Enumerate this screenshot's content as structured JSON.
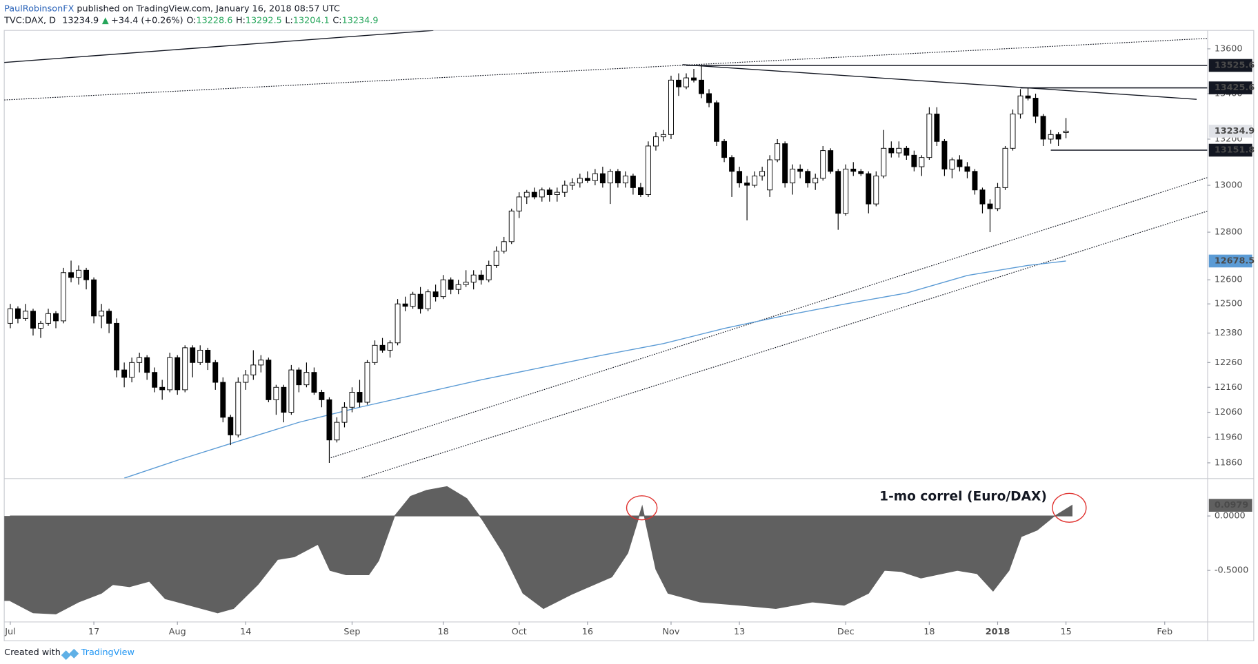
{
  "header": {
    "author": "PaulRobinsonFX",
    "published": " published on TradingView.com, January 16, 2018 08:57 UTC",
    "symbol": "TVC:DAX, D",
    "last": "13234.9",
    "arrow": "▲",
    "change": "+34.4 (+0.26%)",
    "ohlc": [
      {
        "key": "O:",
        "value": "13228.6"
      },
      {
        "key": "H:",
        "value": "13292.5"
      },
      {
        "key": "L:",
        "value": "13204.1"
      },
      {
        "key": "C:",
        "value": "13234.9"
      }
    ]
  },
  "footer": {
    "created": "Created with",
    "brand": "TradingView"
  },
  "chart_data": [
    {
      "type": "candlestick",
      "log": true,
      "ylim": [
        11800,
        13683
      ],
      "xlim": [
        -0.8,
        157.6
      ],
      "yticks": [
        11860,
        11960,
        12060,
        12160,
        12260,
        12380,
        12500,
        12600,
        12800,
        13000,
        13200,
        13400,
        13600
      ],
      "xticks": [
        {
          "value": 0,
          "label": "Jul"
        },
        {
          "value": 11,
          "label": "17"
        },
        {
          "value": 22,
          "label": "Aug"
        },
        {
          "value": 31,
          "label": "14"
        },
        {
          "value": 45,
          "label": "Sep"
        },
        {
          "value": 57,
          "label": "18"
        },
        {
          "value": 67,
          "label": "Oct"
        },
        {
          "value": 76,
          "label": "16"
        },
        {
          "value": 87,
          "label": "Nov"
        },
        {
          "value": 96,
          "label": "13"
        },
        {
          "value": 110,
          "label": "Dec"
        },
        {
          "value": 121,
          "label": "18"
        },
        {
          "value": 130,
          "label": "2018"
        },
        {
          "value": 139,
          "label": "15"
        },
        {
          "value": 152,
          "label": "Feb"
        }
      ],
      "up_color": "#ffffff",
      "down_color": "#000000",
      "candles": [
        [
          12420,
          12500,
          12400,
          12480
        ],
        [
          12480,
          12490,
          12420,
          12440
        ],
        [
          12440,
          12500,
          12430,
          12470
        ],
        [
          12470,
          12480,
          12370,
          12400
        ],
        [
          12400,
          12430,
          12360,
          12420
        ],
        [
          12420,
          12480,
          12410,
          12460
        ],
        [
          12460,
          12470,
          12400,
          12430
        ],
        [
          12430,
          12650,
          12420,
          12630
        ],
        [
          12630,
          12680,
          12590,
          12610
        ],
        [
          12610,
          12660,
          12580,
          12640
        ],
        [
          12640,
          12650,
          12560,
          12600
        ],
        [
          12600,
          12610,
          12420,
          12450
        ],
        [
          12450,
          12500,
          12400,
          12470
        ],
        [
          12470,
          12480,
          12380,
          12420
        ],
        [
          12420,
          12440,
          12200,
          12230
        ],
        [
          12230,
          12260,
          12160,
          12200
        ],
        [
          12200,
          12280,
          12180,
          12260
        ],
        [
          12260,
          12300,
          12220,
          12280
        ],
        [
          12280,
          12290,
          12190,
          12220
        ],
        [
          12220,
          12240,
          12140,
          12160
        ],
        [
          12160,
          12190,
          12110,
          12150
        ],
        [
          12150,
          12300,
          12140,
          12280
        ],
        [
          12280,
          12290,
          12130,
          12150
        ],
        [
          12150,
          12330,
          12140,
          12320
        ],
        [
          12320,
          12330,
          12200,
          12260
        ],
        [
          12260,
          12330,
          12250,
          12310
        ],
        [
          12310,
          12320,
          12230,
          12260
        ],
        [
          12260,
          12270,
          12150,
          12180
        ],
        [
          12180,
          12200,
          12020,
          12040
        ],
        [
          12040,
          12050,
          11930,
          11970
        ],
        [
          11970,
          12200,
          11960,
          12180
        ],
        [
          12180,
          12230,
          12150,
          12210
        ],
        [
          12210,
          12310,
          12190,
          12250
        ],
        [
          12250,
          12290,
          12220,
          12270
        ],
        [
          12270,
          12280,
          12100,
          12110
        ],
        [
          12110,
          12170,
          12050,
          12160
        ],
        [
          12160,
          12170,
          12020,
          12060
        ],
        [
          12060,
          12250,
          12050,
          12230
        ],
        [
          12230,
          12240,
          12140,
          12170
        ],
        [
          12170,
          12260,
          12160,
          12220
        ],
        [
          12220,
          12240,
          12130,
          12140
        ],
        [
          12140,
          12150,
          12080,
          12110
        ],
        [
          12110,
          12120,
          11860,
          11950
        ],
        [
          11950,
          12040,
          11940,
          12020
        ],
        [
          12020,
          12100,
          12000,
          12080
        ],
        [
          12080,
          12160,
          12060,
          12140
        ],
        [
          12140,
          12190,
          12080,
          12100
        ],
        [
          12100,
          12270,
          12090,
          12260
        ],
        [
          12260,
          12350,
          12250,
          12330
        ],
        [
          12330,
          12360,
          12300,
          12310
        ],
        [
          12310,
          12350,
          12280,
          12340
        ],
        [
          12340,
          12520,
          12330,
          12500
        ],
        [
          12500,
          12530,
          12470,
          12490
        ],
        [
          12490,
          12550,
          12480,
          12540
        ],
        [
          12540,
          12570,
          12460,
          12480
        ],
        [
          12480,
          12560,
          12470,
          12550
        ],
        [
          12550,
          12580,
          12510,
          12530
        ],
        [
          12530,
          12620,
          12520,
          12600
        ],
        [
          12600,
          12610,
          12540,
          12560
        ],
        [
          12560,
          12600,
          12540,
          12580
        ],
        [
          12580,
          12640,
          12570,
          12590
        ],
        [
          12590,
          12640,
          12560,
          12620
        ],
        [
          12620,
          12640,
          12580,
          12600
        ],
        [
          12600,
          12680,
          12590,
          12660
        ],
        [
          12660,
          12740,
          12650,
          12720
        ],
        [
          12720,
          12780,
          12710,
          12760
        ],
        [
          12760,
          12900,
          12750,
          12890
        ],
        [
          12890,
          12970,
          12860,
          12950
        ],
        [
          12950,
          12980,
          12920,
          12970
        ],
        [
          12970,
          12990,
          12940,
          12950
        ],
        [
          12950,
          12990,
          12930,
          12980
        ],
        [
          12980,
          12990,
          12930,
          12960
        ],
        [
          12960,
          12990,
          12930,
          12970
        ],
        [
          12970,
          13020,
          12950,
          13000
        ],
        [
          13000,
          13030,
          12980,
          13010
        ],
        [
          13010,
          13050,
          12990,
          13030
        ],
        [
          13030,
          13060,
          13010,
          13020
        ],
        [
          13020,
          13070,
          13000,
          13050
        ],
        [
          13050,
          13080,
          12990,
          13010
        ],
        [
          13010,
          13070,
          12920,
          13060
        ],
        [
          13060,
          13070,
          12990,
          13010
        ],
        [
          13010,
          13060,
          12990,
          13040
        ],
        [
          13040,
          13050,
          12960,
          12990
        ],
        [
          12990,
          13010,
          12950,
          12960
        ],
        [
          12960,
          13190,
          12950,
          13170
        ],
        [
          13170,
          13230,
          13150,
          13210
        ],
        [
          13210,
          13240,
          13190,
          13220
        ],
        [
          13220,
          13480,
          13200,
          13460
        ],
        [
          13460,
          13490,
          13390,
          13430
        ],
        [
          13430,
          13490,
          13420,
          13470
        ],
        [
          13470,
          13510,
          13450,
          13460
        ],
        [
          13460,
          13525.6,
          13380,
          13400
        ],
        [
          13400,
          13420,
          13340,
          13360
        ],
        [
          13360,
          13370,
          13170,
          13190
        ],
        [
          13190,
          13200,
          13100,
          13120
        ],
        [
          13120,
          13130,
          12950,
          13060
        ],
        [
          13060,
          13080,
          12990,
          13010
        ],
        [
          13010,
          13040,
          12850,
          13000
        ],
        [
          13000,
          13060,
          12990,
          13040
        ],
        [
          13040,
          13080,
          13020,
          13060
        ],
        [
          12980,
          13130,
          12950,
          13110
        ],
        [
          13110,
          13200,
          13100,
          13180
        ],
        [
          13180,
          13190,
          12990,
          13010
        ],
        [
          13010,
          13090,
          12960,
          13070
        ],
        [
          13070,
          13090,
          13030,
          13060
        ],
        [
          13060,
          13070,
          12990,
          13010
        ],
        [
          13010,
          13050,
          12980,
          13030
        ],
        [
          13030,
          13170,
          13020,
          13150
        ],
        [
          13150,
          13160,
          13050,
          13060
        ],
        [
          13060,
          13070,
          12810,
          12880
        ],
        [
          12880,
          13090,
          12870,
          13070
        ],
        [
          13070,
          13100,
          13040,
          13060
        ],
        [
          13060,
          13070,
          13040,
          13050
        ],
        [
          13050,
          13060,
          12880,
          12920
        ],
        [
          12920,
          13060,
          12910,
          13040
        ],
        [
          13040,
          13240,
          13030,
          13160
        ],
        [
          13160,
          13190,
          13120,
          13140
        ],
        [
          13140,
          13190,
          13120,
          13160
        ],
        [
          13160,
          13170,
          13110,
          13130
        ],
        [
          13130,
          13150,
          13060,
          13080
        ],
        [
          13080,
          13130,
          13040,
          13120
        ],
        [
          13120,
          13340,
          13110,
          13310
        ],
        [
          13310,
          13340,
          13170,
          13190
        ],
        [
          13190,
          13200,
          13040,
          13070
        ],
        [
          13070,
          13120,
          13030,
          13110
        ],
        [
          13110,
          13130,
          13060,
          13080
        ],
        [
          13080,
          13100,
          13030,
          13060
        ],
        [
          13060,
          13070,
          12960,
          12980
        ],
        [
          12980,
          12990,
          12880,
          12920
        ],
        [
          12920,
          12940,
          12800,
          12900
        ],
        [
          12900,
          13010,
          12890,
          12990
        ],
        [
          12990,
          13170,
          12980,
          13160
        ],
        [
          13160,
          13330,
          13150,
          13310
        ],
        [
          13310,
          13420,
          13290,
          13390
        ],
        [
          13390,
          13425.6,
          13370,
          13380
        ],
        [
          13380,
          13400,
          13270,
          13300
        ],
        [
          13300,
          13310,
          13170,
          13200
        ],
        [
          13200,
          13240,
          13180,
          13220
        ],
        [
          13220,
          13230,
          13170,
          13200
        ],
        [
          13228.6,
          13292.5,
          13204.1,
          13234.9
        ]
      ],
      "last_color": "#e1e3e8",
      "sma": {
        "color": "#5b9bd5",
        "x": [
          15,
          22,
          30,
          38,
          46,
          54,
          62,
          70,
          78,
          86,
          94,
          102,
          110,
          118,
          126,
          134,
          139
        ],
        "values": [
          11800,
          11870,
          11945,
          12020,
          12080,
          12135,
          12190,
          12240,
          12290,
          12337,
          12399,
          12452,
          12500,
          12545,
          12618,
          12660,
          12678.5
        ]
      },
      "levels": [
        {
          "value": 13525.6,
          "from": 89,
          "color": "#131722"
        },
        {
          "value": 13425.6,
          "from": 133,
          "color": "#131722"
        },
        {
          "value": 13151.8,
          "from": 137,
          "color": "#131722"
        }
      ],
      "trendlines": [
        {
          "style": "solid",
          "x": [
            -0.8,
            55.7
          ],
          "values": [
            13539,
            13683
          ]
        },
        {
          "style": "dotted",
          "x": [
            -0.8,
            157.6
          ],
          "values": [
            13372,
            13647
          ]
        },
        {
          "style": "solid",
          "x": [
            88.5,
            156.2
          ],
          "values": [
            13529,
            13375
          ]
        },
        {
          "style": "dotted",
          "x": [
            42.2,
            157.6
          ],
          "values": [
            11880,
            13033
          ]
        },
        {
          "style": "dotted",
          "x": [
            46.3,
            157.6
          ],
          "values": [
            11800,
            12889
          ]
        }
      ]
    },
    {
      "type": "area",
      "xlim": [
        -0.8,
        157.6
      ],
      "ylim": [
        -0.97,
        0.34
      ],
      "color": "#606060",
      "label_color": "#606060",
      "yticks": [
        {
          "value": 0,
          "label": "0.0000"
        },
        {
          "value": -0.5,
          "label": "-0.5000"
        }
      ],
      "annotation": "1-mo correl (Euro/DAX)",
      "x": [
        0,
        3,
        6,
        9,
        12,
        13.5,
        15.7,
        18.3,
        20.4,
        23.6,
        27.3,
        29.4,
        32.6,
        35.2,
        37.4,
        40.5,
        42.1,
        44.2,
        47.2,
        48.5,
        50.6,
        52.7,
        54.8,
        57.5,
        60.1,
        62.2,
        64.9,
        67.5,
        70.2,
        73.9,
        79.2,
        81.3,
        83.2,
        85,
        86.6,
        90.8,
        96.1,
        100.8,
        105.6,
        109.8,
        113,
        115.1,
        117.3,
        119.9,
        124.7,
        127.3,
        129.4,
        131.5,
        133.1,
        135.2,
        137.3,
        139.8
      ],
      "values": [
        -0.78,
        -0.89,
        -0.9,
        -0.79,
        -0.71,
        -0.63,
        -0.65,
        -0.6,
        -0.76,
        -0.82,
        -0.89,
        -0.85,
        -0.63,
        -0.4,
        -0.375,
        -0.26,
        -0.5,
        -0.54,
        -0.54,
        -0.41,
        0,
        0.18,
        0.235,
        0.27,
        0.16,
        -0.04,
        -0.34,
        -0.71,
        -0.85,
        -0.72,
        -0.56,
        -0.34,
        0.09,
        -0.49,
        -0.71,
        -0.79,
        -0.82,
        -0.85,
        -0.79,
        -0.82,
        -0.71,
        -0.5,
        -0.51,
        -0.57,
        -0.5,
        -0.53,
        -0.69,
        -0.5,
        -0.19,
        -0.13,
        -0.01,
        0.0979
      ]
    }
  ]
}
